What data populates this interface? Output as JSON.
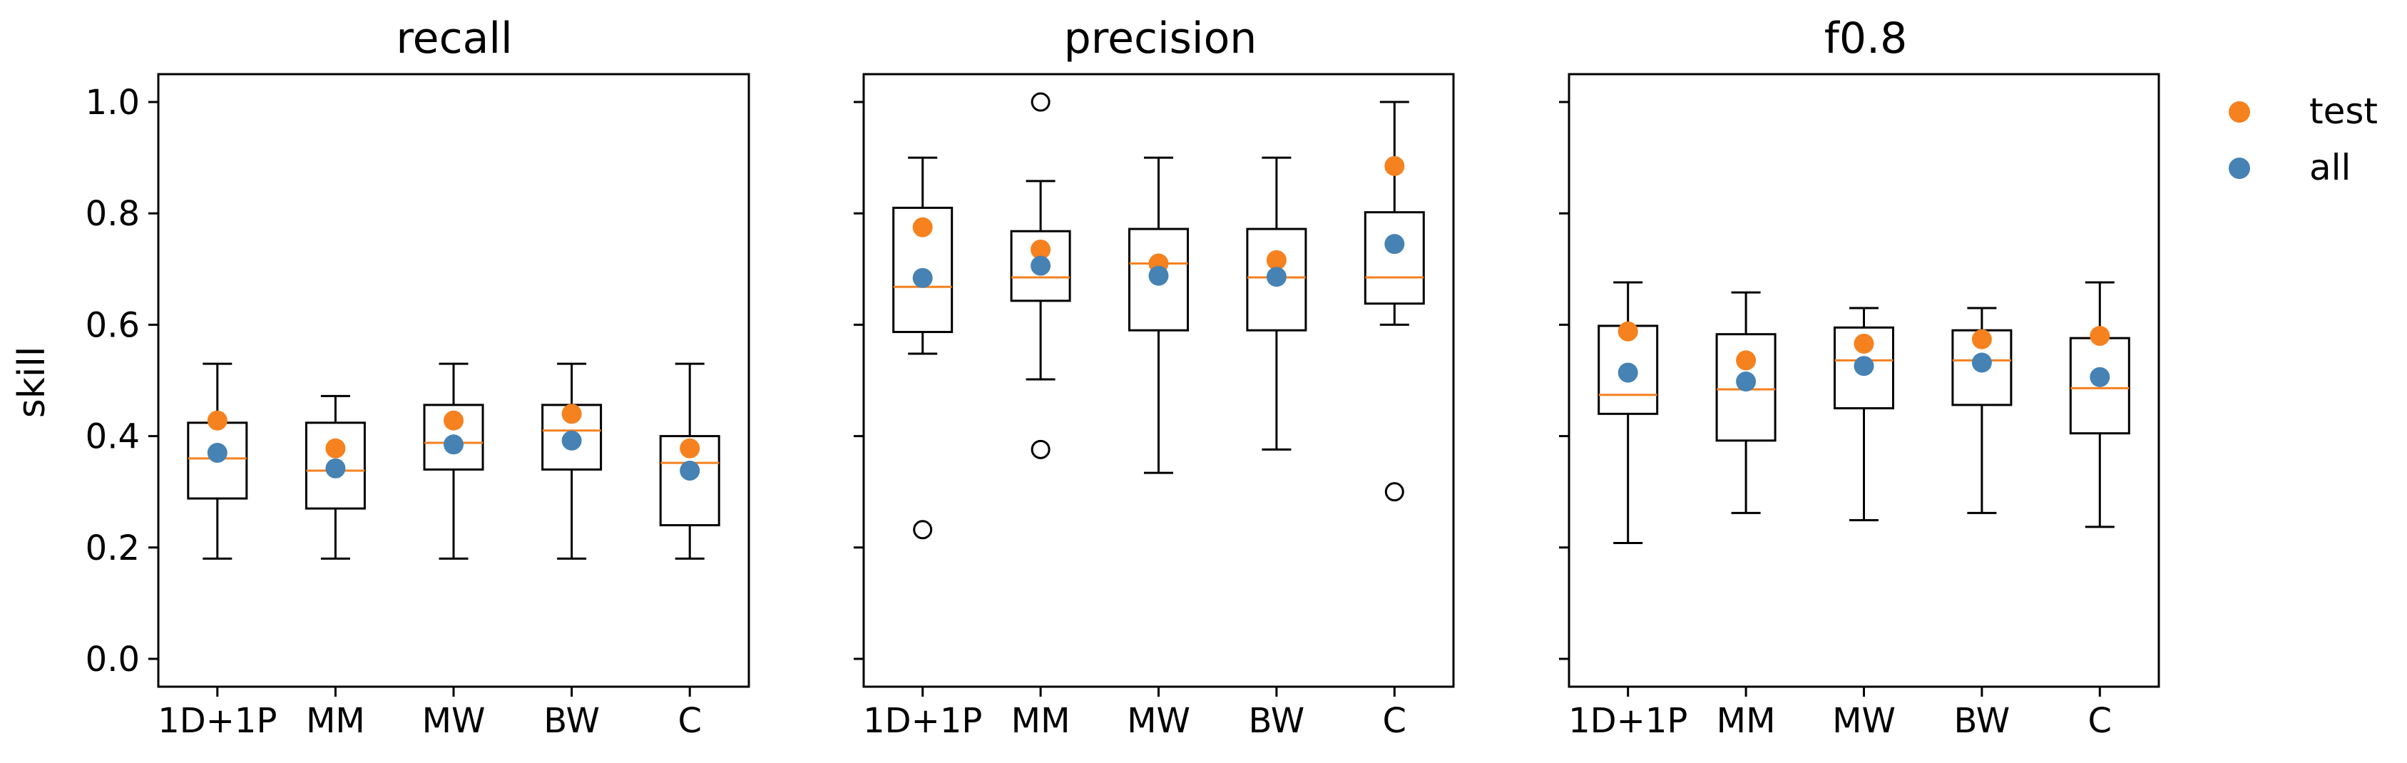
{
  "figure": {
    "ylabel": "skill"
  },
  "legend": {
    "position": "outside-right",
    "entries": [
      {
        "label": "test",
        "color": "#f5811f"
      },
      {
        "label": "all",
        "color": "#4682b4"
      }
    ]
  },
  "chart_data": [
    {
      "type": "box",
      "title": "recall",
      "ylabel": "skill",
      "ylim": [
        -0.05,
        1.05
      ],
      "yticks": [
        "0.0",
        "0.2",
        "0.4",
        "0.6",
        "0.8",
        "1.0"
      ],
      "categories": [
        "1D+1P",
        "MM",
        "MW",
        "BW",
        "C"
      ],
      "boxes": [
        {
          "min": 0.18,
          "q1": 0.288,
          "median": 0.36,
          "q3": 0.424,
          "max": 0.53,
          "outliers": []
        },
        {
          "min": 0.18,
          "q1": 0.27,
          "median": 0.338,
          "q3": 0.424,
          "max": 0.472,
          "outliers": []
        },
        {
          "min": 0.18,
          "q1": 0.34,
          "median": 0.388,
          "q3": 0.456,
          "max": 0.53,
          "outliers": []
        },
        {
          "min": 0.18,
          "q1": 0.34,
          "median": 0.41,
          "q3": 0.456,
          "max": 0.53,
          "outliers": []
        },
        {
          "min": 0.18,
          "q1": 0.24,
          "median": 0.352,
          "q3": 0.4,
          "max": 0.53,
          "outliers": []
        }
      ],
      "series": [
        {
          "name": "test",
          "color": "#f5811f",
          "values": [
            0.428,
            0.378,
            0.428,
            0.44,
            0.378
          ]
        },
        {
          "name": "all",
          "color": "#4682b4",
          "values": [
            0.37,
            0.342,
            0.385,
            0.392,
            0.338
          ]
        }
      ]
    },
    {
      "type": "box",
      "title": "precision",
      "ylim": [
        -0.05,
        1.05
      ],
      "yticks": [
        "0.0",
        "0.2",
        "0.4",
        "0.6",
        "0.8",
        "1.0"
      ],
      "categories": [
        "1D+1P",
        "MM",
        "MW",
        "BW",
        "C"
      ],
      "boxes": [
        {
          "min": 0.548,
          "q1": 0.587,
          "median": 0.668,
          "q3": 0.81,
          "max": 0.9,
          "outliers": [
            0.232
          ]
        },
        {
          "min": 0.502,
          "q1": 0.643,
          "median": 0.685,
          "q3": 0.768,
          "max": 0.858,
          "outliers": [
            1.0,
            0.376
          ]
        },
        {
          "min": 0.334,
          "q1": 0.59,
          "median": 0.71,
          "q3": 0.772,
          "max": 0.9,
          "outliers": []
        },
        {
          "min": 0.376,
          "q1": 0.59,
          "median": 0.685,
          "q3": 0.772,
          "max": 0.9,
          "outliers": []
        },
        {
          "min": 0.6,
          "q1": 0.638,
          "median": 0.685,
          "q3": 0.802,
          "max": 1.0,
          "outliers": [
            0.3
          ]
        }
      ],
      "series": [
        {
          "name": "test",
          "color": "#f5811f",
          "values": [
            0.775,
            0.735,
            0.71,
            0.716,
            0.885
          ]
        },
        {
          "name": "all",
          "color": "#4682b4",
          "values": [
            0.684,
            0.706,
            0.688,
            0.686,
            0.745
          ]
        }
      ]
    },
    {
      "type": "box",
      "title": "f0.8",
      "ylim": [
        -0.05,
        1.05
      ],
      "yticks": [
        "0.0",
        "0.2",
        "0.4",
        "0.6",
        "0.8",
        "1.0"
      ],
      "categories": [
        "1D+1P",
        "MM",
        "MW",
        "BW",
        "C"
      ],
      "boxes": [
        {
          "min": 0.208,
          "q1": 0.44,
          "median": 0.474,
          "q3": 0.598,
          "max": 0.676,
          "outliers": []
        },
        {
          "min": 0.262,
          "q1": 0.392,
          "median": 0.484,
          "q3": 0.583,
          "max": 0.658,
          "outliers": []
        },
        {
          "min": 0.249,
          "q1": 0.45,
          "median": 0.536,
          "q3": 0.595,
          "max": 0.63,
          "outliers": []
        },
        {
          "min": 0.262,
          "q1": 0.456,
          "median": 0.536,
          "q3": 0.59,
          "max": 0.63,
          "outliers": []
        },
        {
          "min": 0.237,
          "q1": 0.405,
          "median": 0.486,
          "q3": 0.576,
          "max": 0.676,
          "outliers": []
        }
      ],
      "series": [
        {
          "name": "test",
          "color": "#f5811f",
          "values": [
            0.588,
            0.536,
            0.566,
            0.574,
            0.58
          ]
        },
        {
          "name": "all",
          "color": "#4682b4",
          "values": [
            0.514,
            0.498,
            0.526,
            0.532,
            0.506
          ]
        }
      ]
    }
  ]
}
